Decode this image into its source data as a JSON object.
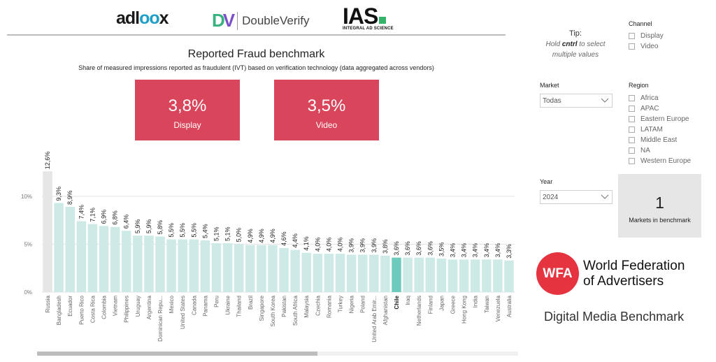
{
  "logos": {
    "adloox_a": "adl",
    "adloox_b": "oo",
    "adloox_c": "x",
    "dv_mark_d": "D",
    "dv_mark_v": "V",
    "dv_text": "DoubleVerify",
    "ias_text": "IAS",
    "ias_sub": "INTEGRAL AD SCIENCE"
  },
  "report": {
    "title": "Reported Fraud benchmark",
    "subtitle": "Share of measured impressions reported as fraudulent (IVT) based on verification technology (data aggregated across vendors)"
  },
  "kpis": [
    {
      "value": "3,8%",
      "label": "Display"
    },
    {
      "value": "3,5%",
      "label": "Video"
    }
  ],
  "chart_data": {
    "type": "bar",
    "title": "Reported Fraud benchmark",
    "xlabel": "",
    "ylabel": "",
    "ylim": [
      0,
      14
    ],
    "yticks": [
      0,
      5,
      10
    ],
    "ytick_labels": [
      "0%",
      "5%",
      "10%"
    ],
    "highlight": "Chile",
    "colors": {
      "bar": "#cdeae7",
      "highlight": "#6dcbbd",
      "first": "#e6e6e6"
    },
    "categories": [
      "Russia",
      "Bangladesh",
      "Ecuador",
      "Puerto Rico",
      "Costa Rica",
      "Colombia",
      "Vietnam",
      "Philippines",
      "Uruguay",
      "Argentina",
      "Dominican Repu...",
      "Mexico",
      "United States",
      "Canada",
      "Panama",
      "Peru",
      "Ukraine",
      "Thailand",
      "Brazil",
      "Singapore",
      "South Korea",
      "Pakistan",
      "South Africa",
      "Malaysia",
      "Czechia",
      "Romania",
      "Turkey",
      "Nigeria",
      "Poland",
      "United Arab Emir...",
      "Afghanistan",
      "Chile",
      "Iraq",
      "Netherlands",
      "Finland",
      "Japan",
      "Greece",
      "Hong Kong",
      "India",
      "Taiwan",
      "Venezuela",
      "Australia"
    ],
    "values": [
      12.6,
      9.3,
      8.9,
      7.4,
      7.1,
      6.9,
      6.8,
      6.4,
      5.9,
      5.9,
      5.8,
      5.5,
      5.5,
      5.5,
      5.4,
      5.1,
      5.1,
      5.0,
      4.9,
      4.9,
      4.9,
      4.6,
      4.4,
      4.1,
      4.0,
      4.0,
      4.0,
      3.9,
      3.9,
      3.9,
      3.8,
      3.6,
      3.6,
      3.6,
      3.6,
      3.5,
      3.4,
      3.4,
      3.4,
      3.4,
      3.4,
      3.3
    ],
    "value_labels": [
      "12,6%",
      "9,3%",
      "8,9%",
      "7,4%",
      "7,1%",
      "6,9%",
      "6,8%",
      "6,4%",
      "5,9%",
      "5,9%",
      "5,8%",
      "5,5%",
      "5,5%",
      "5,5%",
      "5,4%",
      "5,1%",
      "5,1%",
      "5,0%",
      "4,9%",
      "4,9%",
      "4,9%",
      "4,6%",
      "4,4%",
      "4,1%",
      "4,0%",
      "4,0%",
      "4,0%",
      "3,9%",
      "3,9%",
      "3,9%",
      "3,8%",
      "3,6%",
      "3,6%",
      "3,6%",
      "3,6%",
      "3,5%",
      "3,4%",
      "3,4%",
      "3,4%",
      "3,4%",
      "3,4%",
      "3,3%"
    ]
  },
  "filters": {
    "tip_title": "Tip:",
    "tip_pre": "Hold ",
    "tip_key": "cntrl",
    "tip_post": " to select multiple values",
    "channel": {
      "title": "Channel",
      "options": [
        "Display",
        "Video"
      ]
    },
    "market": {
      "title": "Market",
      "value": "Todas"
    },
    "region": {
      "title": "Region",
      "options": [
        "Africa",
        "APAC",
        "Eastern Europe",
        "LATAM",
        "Middle East",
        "NA",
        "Western Europe"
      ]
    },
    "year": {
      "title": "Year",
      "value": "2024"
    }
  },
  "markets_card": {
    "value": "1",
    "label": "Markets in benchmark"
  },
  "wfa": {
    "logo_text": "WFA",
    "name_line1": "World Federation",
    "name_line2": "of Advertisers",
    "benchmark": "Digital Media Benchmark"
  }
}
